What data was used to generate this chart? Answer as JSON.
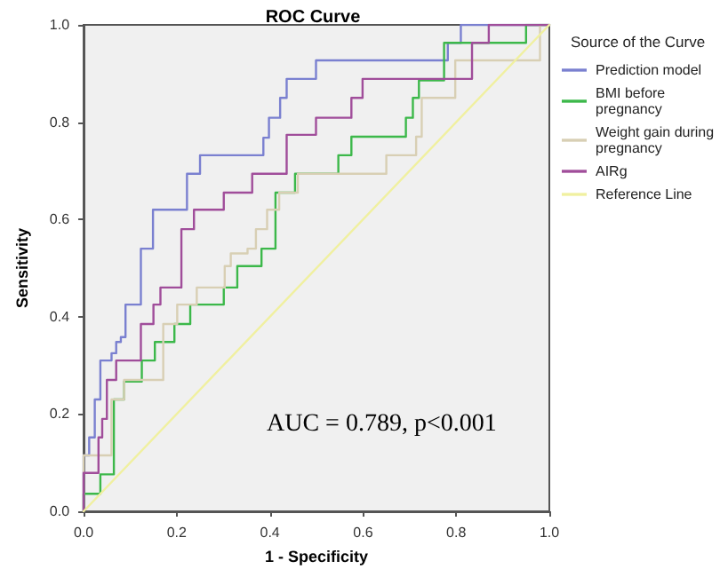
{
  "chart_data": {
    "type": "step",
    "title": "ROC Curve",
    "xlabel": "1 - Specificity",
    "ylabel": "Sensitivity",
    "legend_title": "Source of the Curve",
    "legend": "right",
    "grid": false,
    "marker": "none",
    "xlim": [
      0,
      1
    ],
    "ylim": [
      0,
      1
    ],
    "xticks": [
      {
        "value": 0,
        "label": "0.0"
      },
      {
        "value": 0.2,
        "label": "0.2"
      },
      {
        "value": 0.4,
        "label": "0.4"
      },
      {
        "value": 0.6,
        "label": "0.6"
      },
      {
        "value": 0.8,
        "label": "0.8"
      },
      {
        "value": 1,
        "label": "1.0"
      }
    ],
    "yticks": [
      {
        "value": 0,
        "label": "0.0"
      },
      {
        "value": 0.2,
        "label": "0.2"
      },
      {
        "value": 0.4,
        "label": "0.4"
      },
      {
        "value": 0.6,
        "label": "0.6"
      },
      {
        "value": 0.8,
        "label": "0.8"
      },
      {
        "value": 1,
        "label": "1.0"
      }
    ],
    "annotations": [
      "AUC = 0.789, p<0.001"
    ],
    "series": [
      {
        "name": "Prediction model",
        "color": "#7a80d0",
        "x": [
          0,
          0,
          0.012,
          0.024,
          0.036,
          0.06,
          0.07,
          0.08,
          0.09,
          0.123,
          0.149,
          0.222,
          0.25,
          0.386,
          0.398,
          0.422,
          0.436,
          0.499,
          0.782,
          0.81,
          1
        ],
        "values": [
          0,
          0.115,
          0.152,
          0.23,
          0.31,
          0.325,
          0.348,
          0.358,
          0.425,
          0.54,
          0.62,
          0.694,
          0.732,
          0.768,
          0.809,
          0.85,
          0.889,
          0.927,
          0.963,
          1,
          1
        ]
      },
      {
        "name": "BMI before pregnancy",
        "color": "#3cb84a",
        "x": [
          0,
          0,
          0.036,
          0.065,
          0.087,
          0.125,
          0.153,
          0.195,
          0.229,
          0.301,
          0.33,
          0.382,
          0.412,
          0.454,
          0.547,
          0.575,
          0.692,
          0.707,
          0.72,
          0.774,
          0.95,
          1
        ],
        "values": [
          0,
          0.036,
          0.076,
          0.23,
          0.267,
          0.31,
          0.348,
          0.385,
          0.425,
          0.46,
          0.504,
          0.54,
          0.655,
          0.694,
          0.732,
          0.77,
          0.809,
          0.85,
          0.886,
          0.963,
          1,
          1
        ]
      },
      {
        "name": "Weight gain during pregnancy",
        "color": "#d8cfb4",
        "x": [
          0,
          0,
          0.06,
          0.087,
          0.171,
          0.201,
          0.243,
          0.303,
          0.316,
          0.352,
          0.37,
          0.394,
          0.42,
          0.46,
          0.611,
          0.65,
          0.714,
          0.726,
          0.798,
          0.98,
          1
        ],
        "values": [
          0,
          0.115,
          0.23,
          0.27,
          0.385,
          0.425,
          0.46,
          0.504,
          0.53,
          0.54,
          0.58,
          0.62,
          0.655,
          0.694,
          0.694,
          0.732,
          0.77,
          0.85,
          0.927,
          1,
          1
        ]
      },
      {
        "name": "AIRg",
        "color": "#a04d9a",
        "x": [
          0,
          0,
          0.032,
          0.04,
          0.05,
          0.07,
          0.123,
          0.15,
          0.165,
          0.21,
          0.237,
          0.301,
          0.362,
          0.436,
          0.499,
          0.575,
          0.599,
          0.834,
          0.87,
          1
        ],
        "values": [
          0,
          0.079,
          0.152,
          0.19,
          0.27,
          0.31,
          0.385,
          0.425,
          0.46,
          0.58,
          0.62,
          0.655,
          0.694,
          0.774,
          0.809,
          0.85,
          0.889,
          0.963,
          1,
          1
        ]
      },
      {
        "name": "Reference Line",
        "type": "line",
        "color": "#f0f0a0",
        "x": [
          0,
          1
        ],
        "values": [
          0,
          1
        ]
      }
    ]
  }
}
